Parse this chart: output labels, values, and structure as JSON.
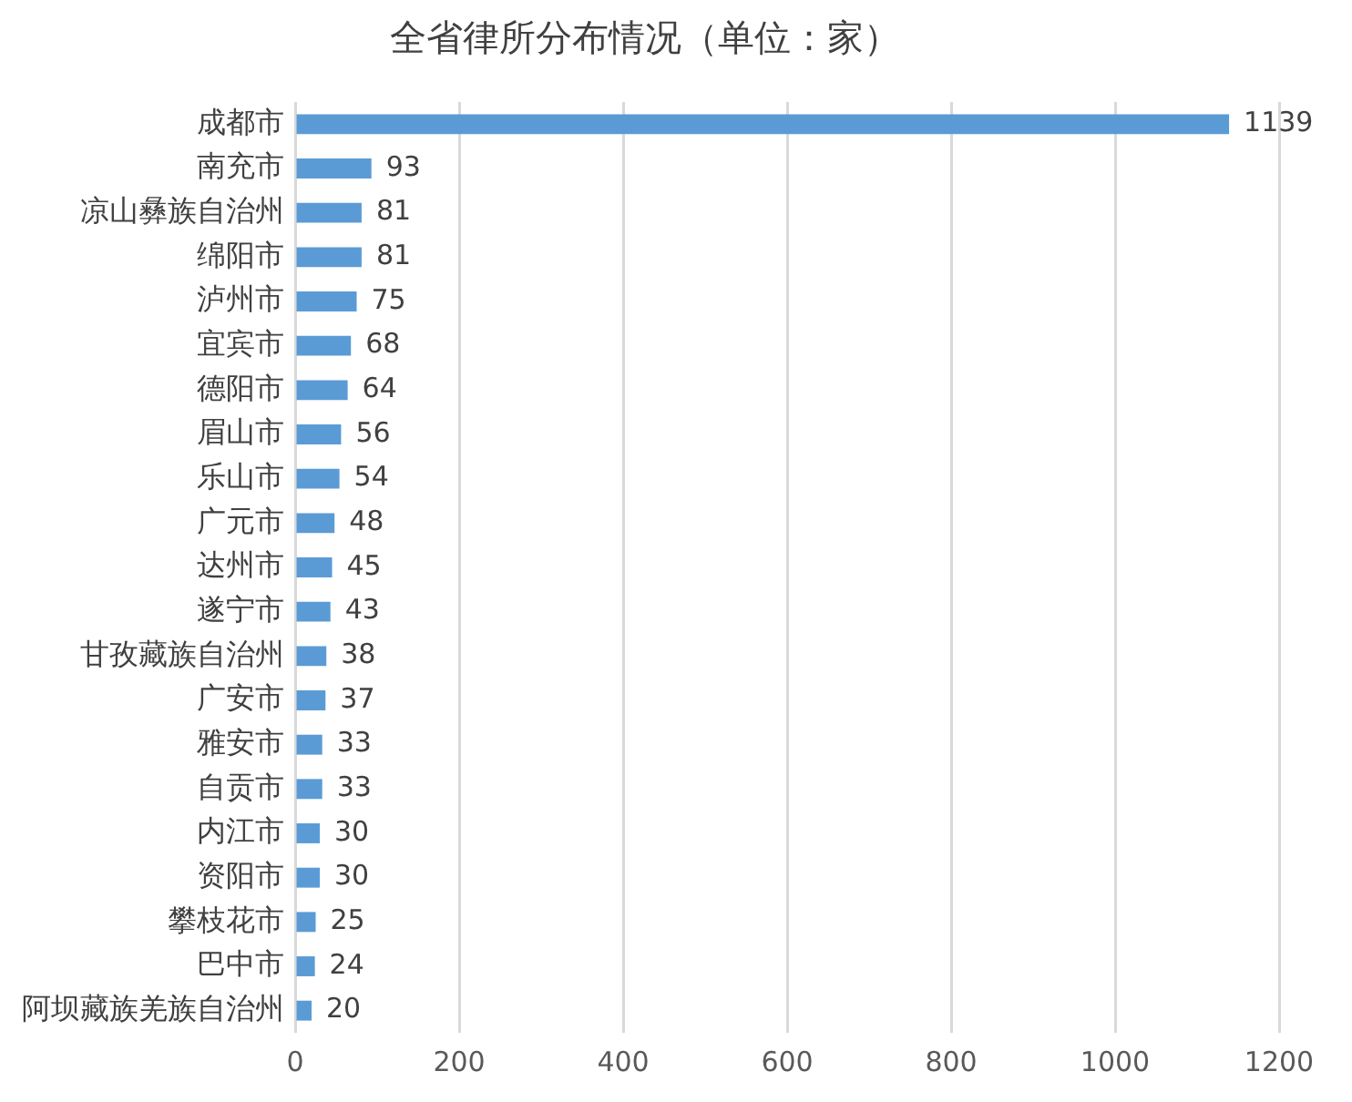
{
  "chart_data": {
    "type": "bar",
    "orientation": "horizontal",
    "title": "全省律所分布情况（单位：家）",
    "categories": [
      "成都市",
      "南充市",
      "凉山彝族自治州",
      "绵阳市",
      "泸州市",
      "宜宾市",
      "德阳市",
      "眉山市",
      "乐山市",
      "广元市",
      "达州市",
      "遂宁市",
      "甘孜藏族自治州",
      "广安市",
      "雅安市",
      "自贡市",
      "内江市",
      "资阳市",
      "攀枝花市",
      "巴中市",
      "阿坝藏族羌族自治州"
    ],
    "values": [
      1139,
      93,
      81,
      81,
      75,
      68,
      64,
      56,
      54,
      48,
      45,
      43,
      38,
      37,
      33,
      33,
      30,
      30,
      25,
      24,
      20
    ],
    "color": "#5b9bd5",
    "xlim": [
      0,
      1200
    ],
    "xticks": [
      0,
      200,
      400,
      600,
      800,
      1000,
      1200
    ],
    "grid": "x",
    "legend": false,
    "data_labels": true
  }
}
